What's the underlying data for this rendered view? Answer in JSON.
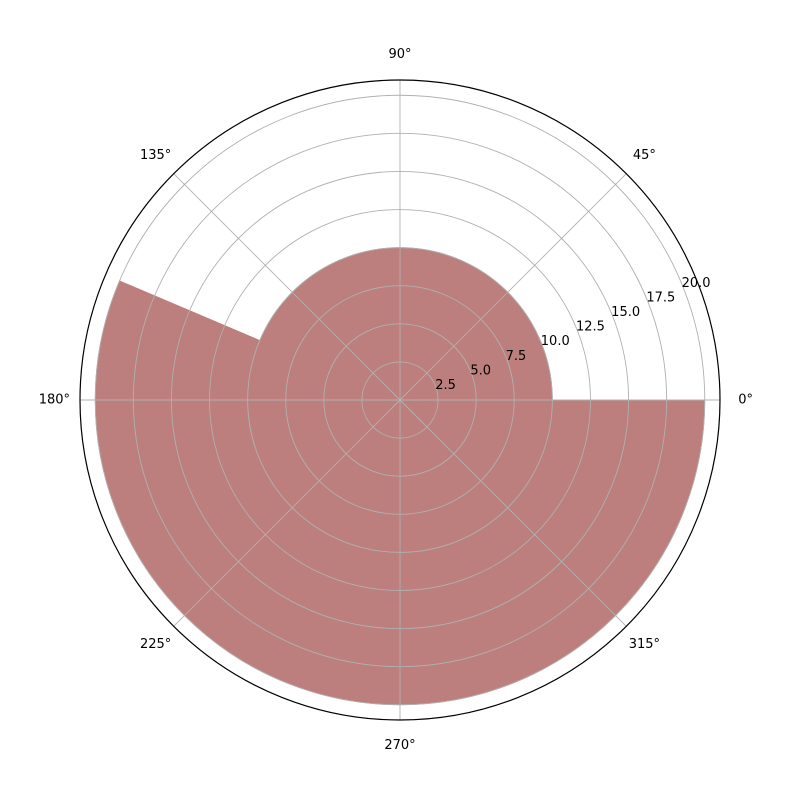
{
  "chart_data": {
    "type": "polar-bar",
    "title": "",
    "theta_unit": "deg",
    "r_max": 21,
    "color": "#bc7f7d",
    "bar_edge": "#bc7f7d",
    "grid": true,
    "grid_color": "#b0b0b0",
    "bars": [
      {
        "theta_start": -15,
        "theta_end": 0,
        "r": 20
      },
      {
        "theta_start": 0,
        "theta_end": 157,
        "r": 10
      },
      {
        "theta_start": 157,
        "theta_end": 345,
        "r": 20
      }
    ],
    "r_ticks": [
      2.5,
      5.0,
      7.5,
      10.0,
      12.5,
      15.0,
      17.5,
      20.0
    ],
    "r_tick_labels": [
      "2.5",
      "5.0",
      "7.5",
      "10.0",
      "12.5",
      "15.0",
      "17.5",
      "20.0"
    ],
    "theta_ticks": [
      0,
      45,
      90,
      135,
      180,
      225,
      270,
      315
    ],
    "theta_tick_labels": [
      "0°",
      "45°",
      "90°",
      "135°",
      "180°",
      "225°",
      "270°",
      "315°"
    ]
  }
}
